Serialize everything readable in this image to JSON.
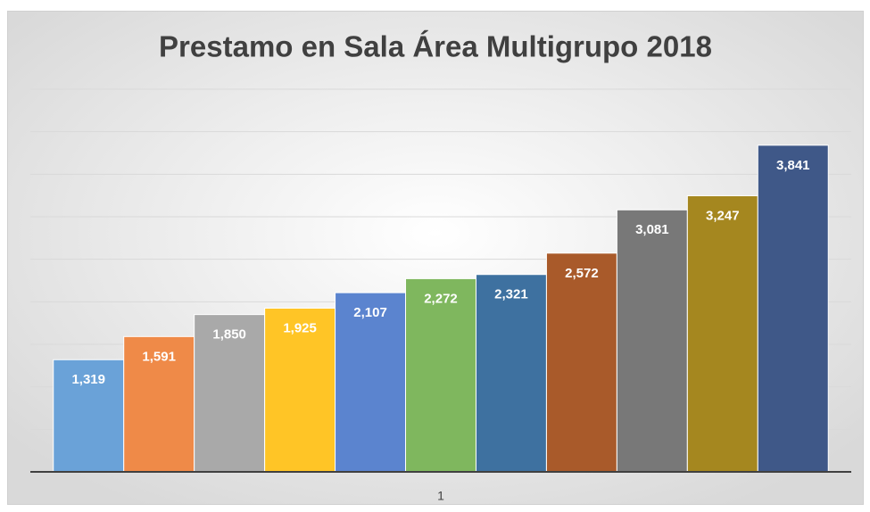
{
  "chart_data": {
    "type": "bar",
    "title": "Prestamo en Sala Área Multigrupo 2018",
    "categories": [
      "1"
    ],
    "series": [
      {
        "color": "#6aa2d8",
        "values": [
          1319
        ],
        "value_labels": [
          "1,319"
        ]
      },
      {
        "color": "#ef8a48",
        "values": [
          1591
        ],
        "value_labels": [
          "1,591"
        ]
      },
      {
        "color": "#a9a9a9",
        "values": [
          1850
        ],
        "value_labels": [
          "1,850"
        ]
      },
      {
        "color": "#ffc526",
        "values": [
          1925
        ],
        "value_labels": [
          "1,925"
        ]
      },
      {
        "color": "#5b84cf",
        "values": [
          2107
        ],
        "value_labels": [
          "2,107"
        ]
      },
      {
        "color": "#7fb75e",
        "values": [
          2272
        ],
        "value_labels": [
          "2,272"
        ]
      },
      {
        "color": "#3e71a0",
        "values": [
          2321
        ],
        "value_labels": [
          "2,321"
        ]
      },
      {
        "color": "#a95a2a",
        "values": [
          2572
        ],
        "value_labels": [
          "2,572"
        ]
      },
      {
        "color": "#787878",
        "values": [
          3081
        ],
        "value_labels": [
          "3,081"
        ]
      },
      {
        "color": "#a5871f",
        "values": [
          3247
        ],
        "value_labels": [
          "3,247"
        ]
      },
      {
        "color": "#3f5888",
        "values": [
          3841
        ],
        "value_labels": [
          "3,841"
        ]
      }
    ],
    "ylim": [
      0,
      4500
    ],
    "yticks": [
      0,
      500,
      1000,
      1500,
      2000,
      2500,
      3000,
      3500,
      4000,
      4500
    ],
    "grid": true
  }
}
